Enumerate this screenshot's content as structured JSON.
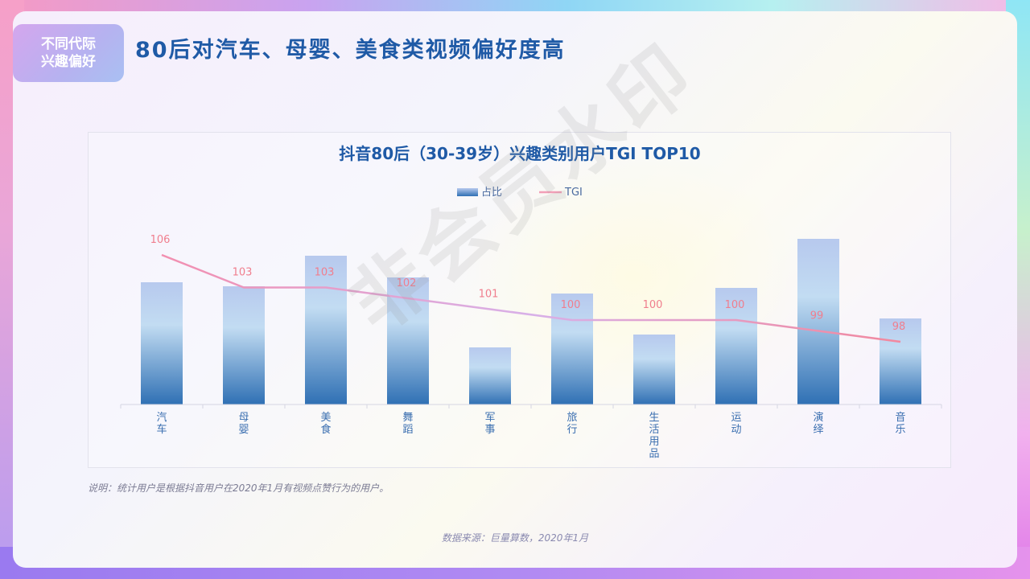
{
  "section_tag": {
    "line1": "不同代际",
    "line2": "兴趣偏好"
  },
  "page_title": "80后对汽车、母婴、美食类视频偏好度高",
  "watermark": "非会员水印",
  "note": "说明：统计用户是根据抖音用户在2020年1月有视频点赞行为的用户。",
  "source": "数据来源：巨量算数，2020年1月",
  "colors": {
    "bar_top": "#b7c9ee",
    "bar_bottom": "#2f70b4",
    "line": "#f29fb7",
    "title": "#1f5aa6"
  },
  "chart_data": {
    "type": "bar",
    "title": "抖音80后（30-39岁）兴趣类别用户TGI TOP10",
    "legend_position": "top-center",
    "categories": [
      "汽车",
      "母婴",
      "美食",
      "舞蹈",
      "军事",
      "旅行",
      "生活用品",
      "运动",
      "演绎",
      "音乐"
    ],
    "series": [
      {
        "name": "占比",
        "type": "bar",
        "values": [
          152,
          147,
          185,
          158,
          71,
          138,
          87,
          145,
          206,
          107
        ]
      },
      {
        "name": "TGI",
        "type": "line",
        "values": [
          106,
          103,
          103,
          102,
          101,
          100,
          100,
          100,
          99,
          98
        ]
      }
    ],
    "data_labels": [
      "106",
      "103",
      "103",
      "102",
      "101",
      "100",
      "100",
      "100",
      "99",
      "98"
    ]
  }
}
